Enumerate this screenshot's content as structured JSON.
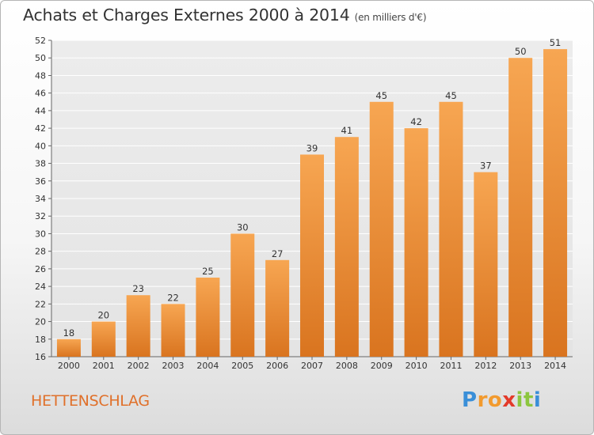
{
  "header": {
    "title": "Achats et Charges Externes 2000 à 2014",
    "subtitle": "(en milliers d'€)"
  },
  "footer": {
    "commune": "HETTENSCHLAG",
    "logo": {
      "letters": [
        "P",
        "r",
        "o",
        "x",
        "i",
        "t",
        "i"
      ],
      "colors": [
        "#3a8fd8",
        "#f29a2e",
        "#f29a2e",
        "#e33a2a",
        "#8cc63e",
        "#8cc63e",
        "#3a8fd8"
      ]
    }
  },
  "chart_data": {
    "type": "bar",
    "title": "Achats et Charges Externes 2000 à 2014",
    "subtitle": "(en milliers d'€)",
    "categories": [
      "2000",
      "2001",
      "2002",
      "2003",
      "2004",
      "2005",
      "2006",
      "2007",
      "2008",
      "2009",
      "2010",
      "2011",
      "2012",
      "2013",
      "2014"
    ],
    "values": [
      18,
      20,
      23,
      22,
      25,
      30,
      27,
      39,
      41,
      45,
      42,
      45,
      37,
      50,
      51
    ],
    "ylim": [
      16,
      52
    ],
    "yticks": [
      16,
      18,
      20,
      22,
      24,
      26,
      28,
      30,
      32,
      34,
      36,
      38,
      40,
      42,
      44,
      46,
      48,
      50,
      52
    ],
    "grid": true,
    "bar_color": "#f09a3e",
    "xlabel": "",
    "ylabel": ""
  }
}
